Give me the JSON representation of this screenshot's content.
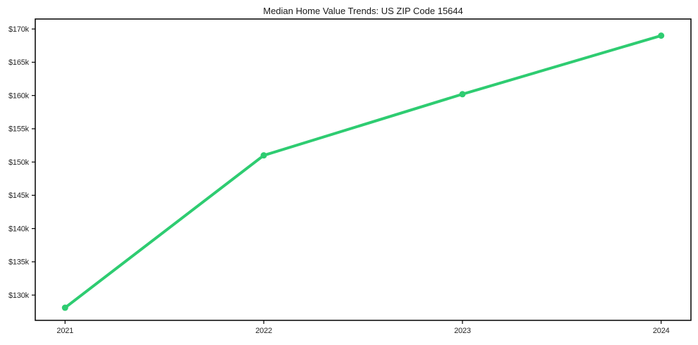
{
  "chart_data": {
    "type": "line",
    "title": "Median Home Value Trends: US ZIP Code 15644",
    "series_name": "Median Home Value",
    "x": [
      2021,
      2022,
      2023,
      2024
    ],
    "values": [
      128100,
      151000,
      160200,
      169000
    ],
    "xlabel": "",
    "ylabel": "",
    "xlim": [
      2020.85,
      2024.15
    ],
    "ylim": [
      126200,
      171500
    ],
    "xticks": [
      {
        "value": 2021,
        "label": "2021"
      },
      {
        "value": 2022,
        "label": "2022"
      },
      {
        "value": 2023,
        "label": "2023"
      },
      {
        "value": 2024,
        "label": "2024"
      }
    ],
    "yticks": [
      {
        "value": 130000,
        "label": "$130k"
      },
      {
        "value": 135000,
        "label": "$135k"
      },
      {
        "value": 140000,
        "label": "$140k"
      },
      {
        "value": 145000,
        "label": "$145k"
      },
      {
        "value": 150000,
        "label": "$150k"
      },
      {
        "value": 155000,
        "label": "$155k"
      },
      {
        "value": 160000,
        "label": "$160k"
      },
      {
        "value": 165000,
        "label": "$165k"
      },
      {
        "value": 170000,
        "label": "$170k"
      }
    ],
    "grid": false,
    "legend": "none",
    "marker": "circle",
    "colors": {
      "line": "#2ecc71",
      "axis": "#000000",
      "tick_label": "#262626",
      "title": "#1a1a1a",
      "background": "#ffffff"
    }
  }
}
